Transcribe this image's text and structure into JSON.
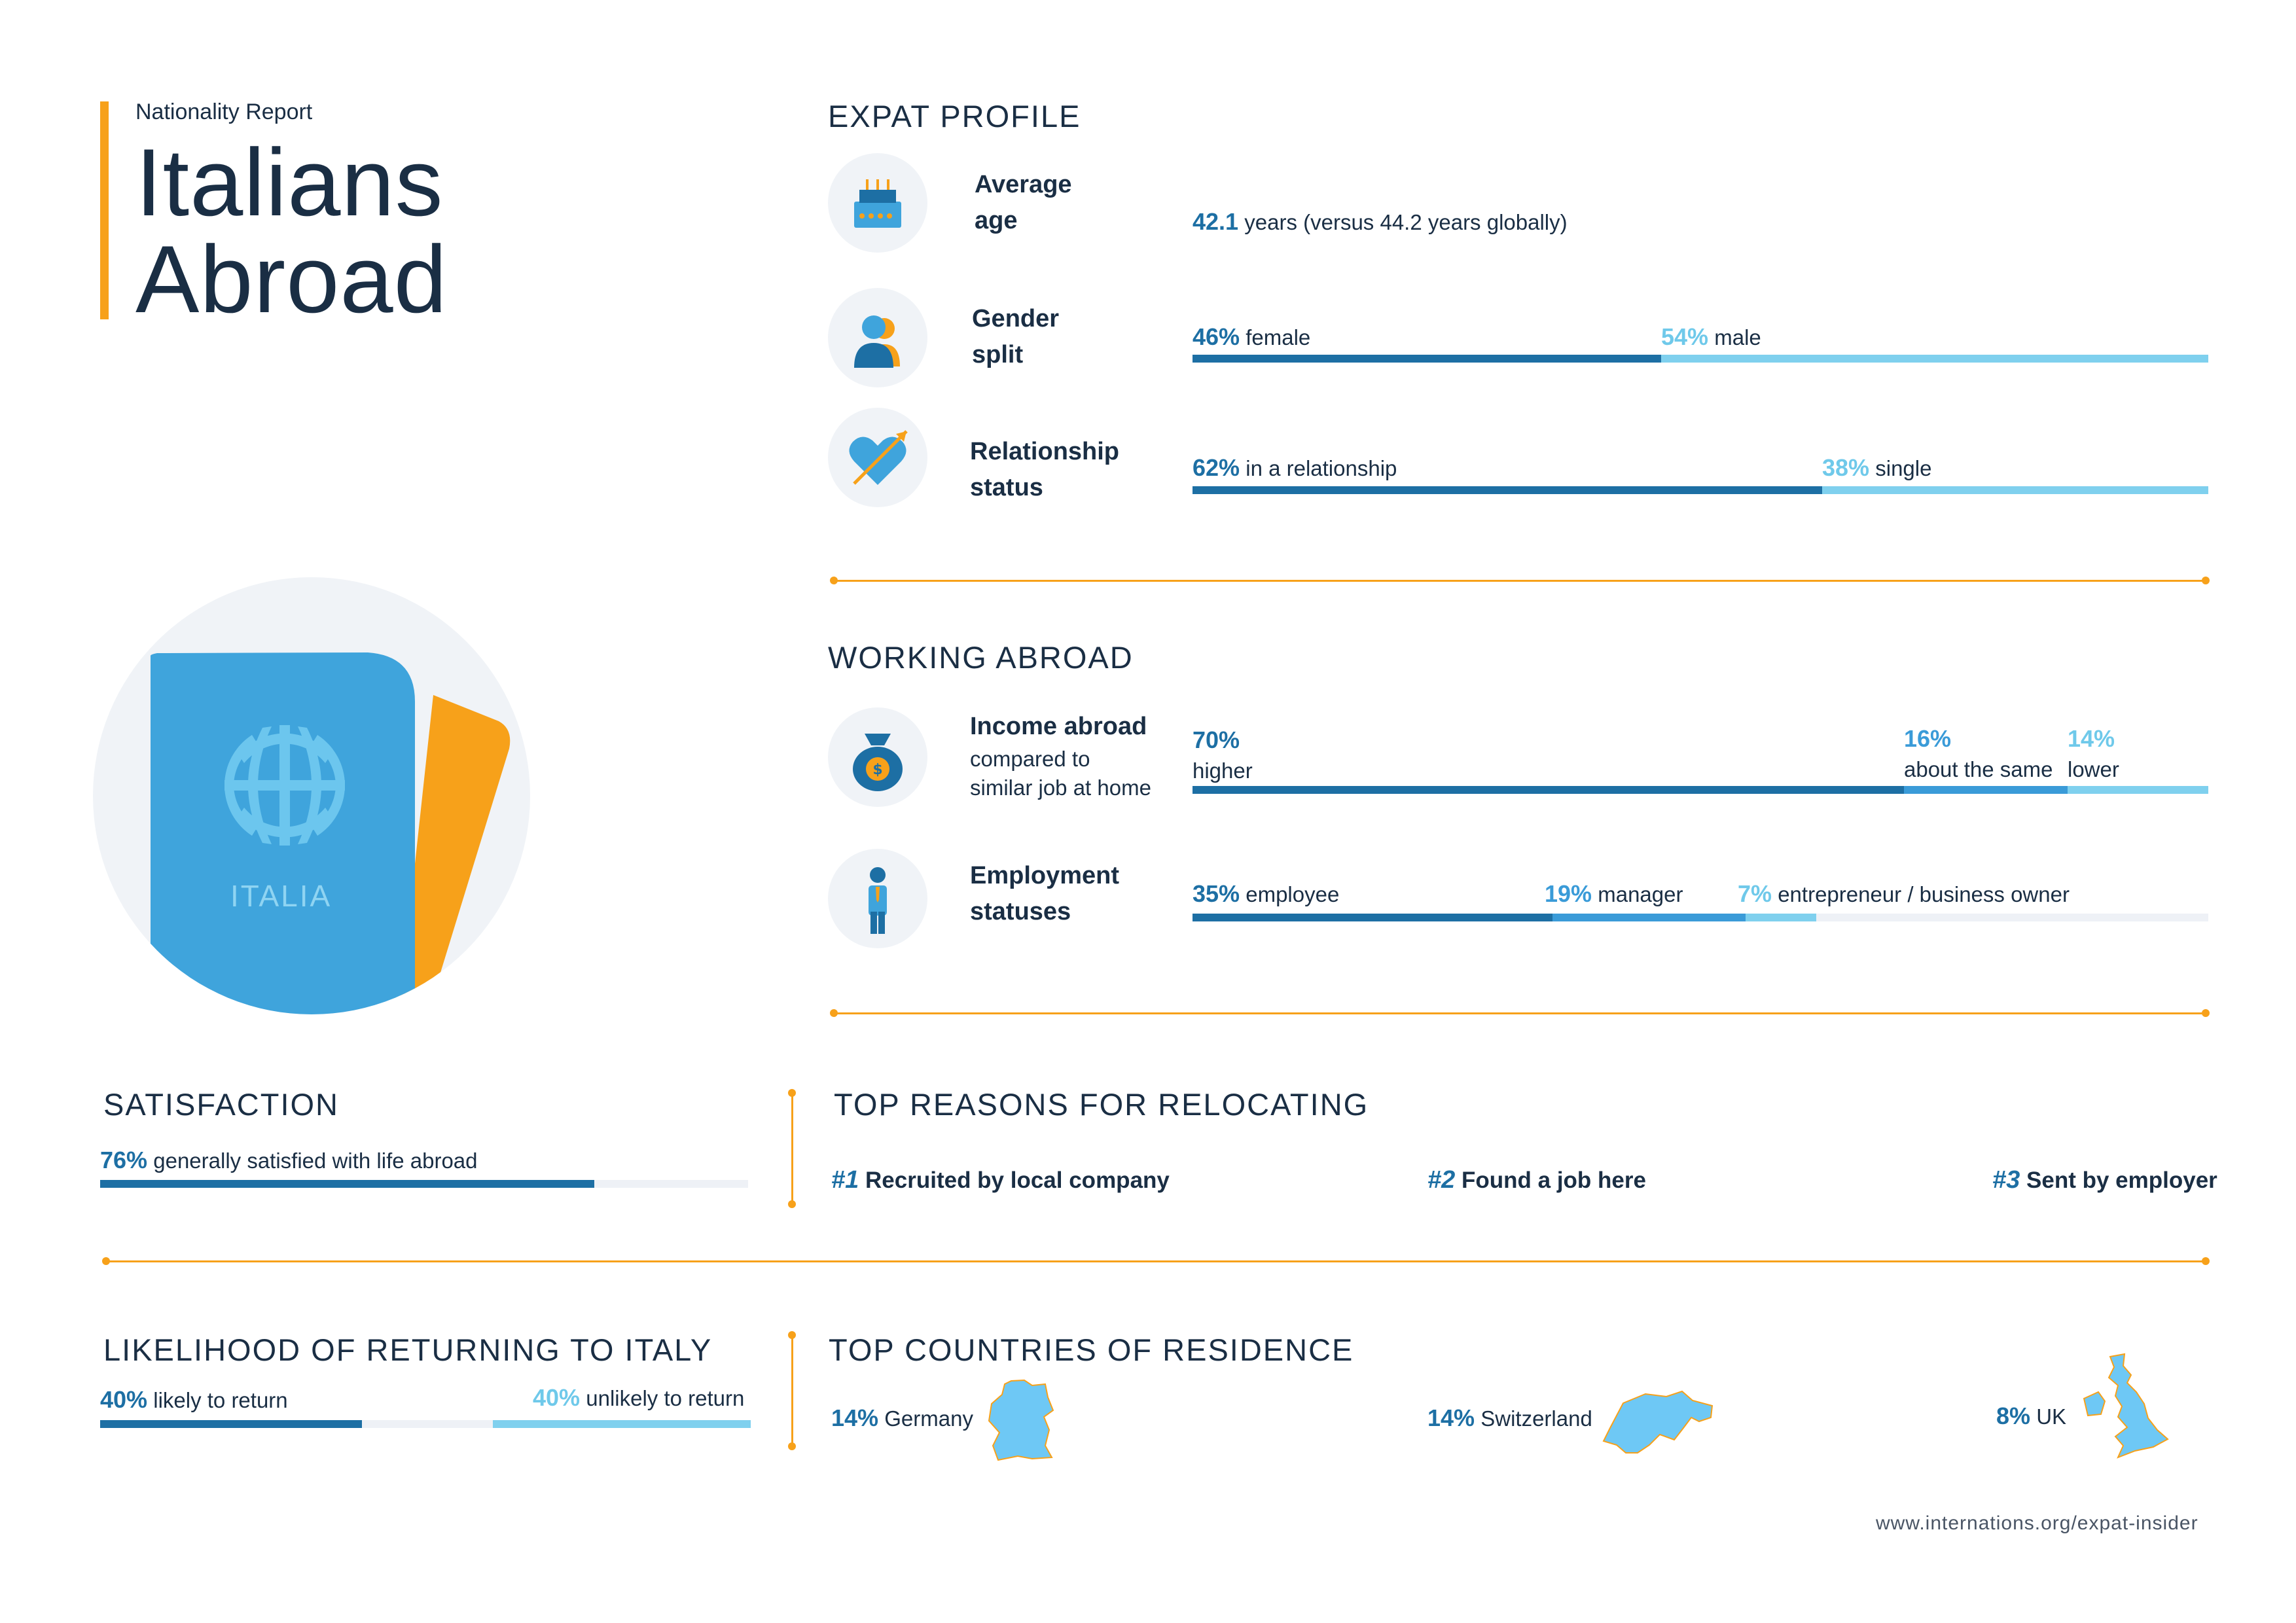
{
  "header": {
    "subtitle": "Nationality Report",
    "title_line1": "Italians",
    "title_line2": "Abroad"
  },
  "passport": {
    "label": "ITALIA"
  },
  "colors": {
    "accent": "#f7a11a",
    "dark_blue": "#1d6fa4",
    "mid_blue": "#3a9bd8",
    "light_blue": "#7fd0ee",
    "navy": "#1a2e44"
  },
  "expat_profile": {
    "title": "EXPAT PROFILE",
    "average_age": {
      "label_line1": "Average",
      "label_line2": "age",
      "value": "42.1",
      "text": "years (versus 44.2 years globally)"
    },
    "gender_split": {
      "label_line1": "Gender",
      "label_line2": "split",
      "female_pct": "46%",
      "female_text": "female",
      "male_pct": "54%",
      "male_text": "male",
      "female_fraction": 0.46
    },
    "relationship": {
      "label_line1": "Relationship",
      "label_line2": "status",
      "rel_pct": "62%",
      "rel_text": "in a relationship",
      "single_pct": "38%",
      "single_text": "single",
      "rel_fraction": 0.62
    }
  },
  "working_abroad": {
    "title": "WORKING ABROAD",
    "income": {
      "label": "Income abroad",
      "sub_line1": "compared to",
      "sub_line2": "similar job at home",
      "higher_pct": "70%",
      "higher_text": "higher",
      "same_pct": "16%",
      "same_text": "about the same",
      "lower_pct": "14%",
      "lower_text": "lower",
      "fractions": [
        0.7,
        0.16,
        0.14
      ]
    },
    "employment": {
      "label_line1": "Employment",
      "label_line2": "statuses",
      "employee_pct": "35%",
      "employee_text": "employee",
      "manager_pct": "19%",
      "manager_text": "manager",
      "entrepreneur_pct": "7%",
      "entrepreneur_text": "entrepreneur / business owner",
      "fractions": [
        0.35,
        0.19,
        0.07
      ]
    }
  },
  "satisfaction": {
    "title": "SATISFACTION",
    "pct": "76%",
    "text": "generally satisfied with life abroad",
    "fraction": 0.76
  },
  "top_reasons": {
    "title": "TOP REASONS FOR RELOCATING",
    "items": [
      {
        "rank": "#1",
        "text": "Recruited by local company"
      },
      {
        "rank": "#2",
        "text": "Found a job here"
      },
      {
        "rank": "#3",
        "text": "Sent by employer"
      }
    ]
  },
  "returning": {
    "title": "LIKELIHOOD OF RETURNING TO ITALY",
    "likely_pct": "40%",
    "likely_text": "likely to return",
    "unlikely_pct": "40%",
    "unlikely_text": "unlikely to return",
    "likely_fraction": 0.4,
    "unlikely_fraction": 0.4
  },
  "top_countries": {
    "title": "TOP COUNTRIES OF RESIDENCE",
    "items": [
      {
        "pct": "14%",
        "name": "Germany",
        "icon": "germany-map-icon"
      },
      {
        "pct": "14%",
        "name": "Switzerland",
        "icon": "switzerland-map-icon"
      },
      {
        "pct": "8%",
        "name": "UK",
        "icon": "uk-map-icon"
      }
    ]
  },
  "footer": {
    "url": "www.internations.org/expat-insider"
  }
}
